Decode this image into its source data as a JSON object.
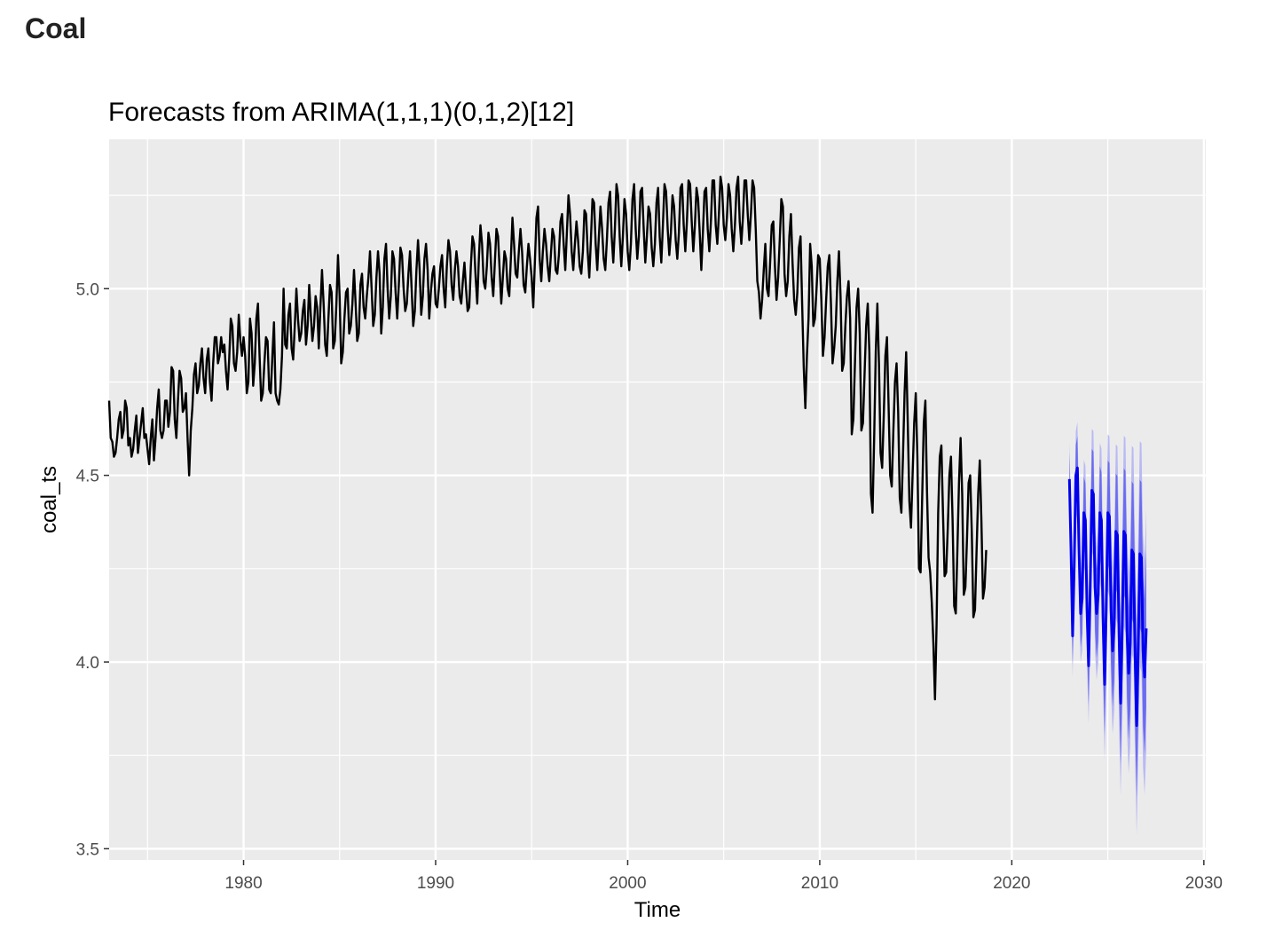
{
  "page": {
    "heading": "Coal"
  },
  "chart_data": {
    "type": "line",
    "title": "Forecasts from ARIMA(1,1,1)(0,1,2)[12]",
    "xlabel": "Time",
    "ylabel": "coal_ts",
    "xlim": [
      1973.0,
      2030.1
    ],
    "ylim": [
      3.47,
      5.4
    ],
    "x_ticks": [
      1980,
      1990,
      2000,
      2010,
      2020,
      2030
    ],
    "y_ticks": [
      3.5,
      4.0,
      4.5,
      5.0
    ],
    "x_tick_labels": [
      "1980",
      "1990",
      "2000",
      "2010",
      "2020",
      "2030"
    ],
    "y_tick_labels": [
      "3.5",
      "4.0",
      "4.5",
      "5.0"
    ],
    "grid": true,
    "legend": "none",
    "colors": {
      "panel": "#ebebeb",
      "grid": "#ffffff",
      "history": "#000000",
      "forecast": "#0000ee",
      "band80": "#6b6bf0",
      "band95": "#b9b9f5",
      "text": "#4d4d4d",
      "title": "#000000"
    },
    "series": [
      {
        "role": "history",
        "frequency": 12,
        "start": 1973.0,
        "values": [
          4.7,
          4.6,
          4.59,
          4.55,
          4.56,
          4.6,
          4.65,
          4.67,
          4.6,
          4.62,
          4.7,
          4.68,
          4.58,
          4.6,
          4.55,
          4.57,
          4.62,
          4.66,
          4.56,
          4.6,
          4.64,
          4.68,
          4.6,
          4.61,
          4.57,
          4.53,
          4.6,
          4.65,
          4.54,
          4.6,
          4.68,
          4.73,
          4.62,
          4.6,
          4.62,
          4.7,
          4.7,
          4.63,
          4.67,
          4.79,
          4.78,
          4.65,
          4.6,
          4.7,
          4.78,
          4.76,
          4.67,
          4.68,
          4.72,
          4.6,
          4.5,
          4.62,
          4.68,
          4.77,
          4.8,
          4.72,
          4.74,
          4.8,
          4.84,
          4.76,
          4.72,
          4.81,
          4.84,
          4.75,
          4.7,
          4.8,
          4.87,
          4.87,
          4.8,
          4.82,
          4.87,
          4.83,
          4.85,
          4.78,
          4.73,
          4.81,
          4.92,
          4.9,
          4.8,
          4.78,
          4.83,
          4.93,
          4.86,
          4.82,
          4.87,
          4.82,
          4.72,
          4.75,
          4.92,
          4.88,
          4.74,
          4.8,
          4.92,
          4.96,
          4.82,
          4.7,
          4.72,
          4.8,
          4.87,
          4.86,
          4.73,
          4.72,
          4.82,
          4.91,
          4.72,
          4.7,
          4.69,
          4.73,
          4.82,
          5.0,
          4.85,
          4.84,
          4.93,
          4.96,
          4.84,
          4.81,
          4.9,
          5.0,
          4.92,
          4.86,
          4.88,
          4.94,
          4.97,
          4.85,
          4.9,
          5.01,
          4.93,
          4.86,
          4.9,
          4.98,
          4.95,
          4.84,
          4.95,
          5.05,
          4.96,
          4.85,
          4.82,
          4.92,
          5.01,
          4.99,
          4.84,
          4.86,
          4.96,
          5.09,
          4.98,
          4.8,
          4.83,
          4.92,
          4.99,
          5.0,
          4.88,
          4.9,
          4.96,
          5.05,
          4.96,
          4.86,
          4.88,
          5.01,
          5.04,
          4.95,
          4.92,
          4.98,
          5.03,
          5.1,
          5.0,
          4.9,
          4.93,
          5.03,
          5.1,
          5.04,
          4.88,
          4.95,
          5.08,
          5.12,
          5.0,
          4.92,
          4.98,
          5.1,
          5.08,
          4.99,
          4.92,
          5.01,
          5.11,
          5.09,
          5.0,
          4.94,
          4.96,
          5.04,
          5.1,
          5.0,
          4.9,
          4.94,
          5.05,
          5.13,
          5.05,
          4.93,
          4.98,
          5.08,
          5.12,
          5.05,
          4.92,
          4.99,
          5.04,
          5.06,
          4.96,
          4.95,
          5.0,
          5.06,
          5.09,
          5.0,
          4.95,
          5.06,
          5.13,
          5.1,
          5.01,
          4.97,
          5.05,
          5.1,
          5.06,
          4.98,
          4.96,
          5.02,
          5.07,
          5.0,
          4.94,
          4.95,
          5.06,
          5.14,
          5.12,
          5.03,
          4.96,
          5.08,
          5.17,
          5.12,
          5.02,
          5.0,
          5.06,
          5.15,
          5.12,
          5.03,
          4.98,
          5.07,
          5.16,
          5.14,
          5.05,
          4.96,
          5.03,
          5.1,
          5.08,
          5.0,
          4.98,
          5.08,
          5.19,
          5.12,
          5.04,
          5.03,
          5.1,
          5.16,
          5.1,
          5.01,
          4.99,
          5.06,
          5.12,
          5.08,
          5.03,
          4.95,
          5.07,
          5.19,
          5.22,
          5.08,
          5.02,
          5.1,
          5.16,
          5.12,
          5.06,
          5.02,
          5.09,
          5.16,
          5.14,
          5.05,
          5.04,
          5.09,
          5.18,
          5.2,
          5.12,
          5.05,
          5.15,
          5.25,
          5.2,
          5.1,
          5.05,
          5.12,
          5.18,
          5.13,
          5.06,
          5.04,
          5.1,
          5.21,
          5.2,
          5.1,
          5.03,
          5.13,
          5.24,
          5.23,
          5.12,
          5.05,
          5.14,
          5.22,
          5.16,
          5.08,
          5.05,
          5.13,
          5.23,
          5.26,
          5.14,
          5.07,
          5.16,
          5.28,
          5.25,
          5.14,
          5.06,
          5.14,
          5.24,
          5.2,
          5.1,
          5.05,
          5.12,
          5.24,
          5.28,
          5.16,
          5.08,
          5.14,
          5.26,
          5.27,
          5.16,
          5.07,
          5.14,
          5.22,
          5.2,
          5.11,
          5.06,
          5.12,
          5.23,
          5.27,
          5.14,
          5.07,
          5.17,
          5.28,
          5.26,
          5.16,
          5.09,
          5.15,
          5.25,
          5.22,
          5.13,
          5.08,
          5.15,
          5.27,
          5.28,
          5.17,
          5.1,
          5.18,
          5.29,
          5.28,
          5.18,
          5.1,
          5.17,
          5.27,
          5.24,
          5.15,
          5.05,
          5.15,
          5.26,
          5.27,
          5.16,
          5.1,
          5.18,
          5.29,
          5.29,
          5.17,
          5.12,
          5.2,
          5.3,
          5.27,
          5.17,
          5.13,
          5.19,
          5.28,
          5.25,
          5.16,
          5.1,
          5.17,
          5.27,
          5.3,
          5.18,
          5.12,
          5.19,
          5.29,
          5.29,
          5.2,
          5.13,
          5.2,
          5.29,
          5.27,
          5.16,
          5.02,
          4.99,
          4.92,
          4.97,
          5.05,
          5.12,
          5.0,
          4.98,
          5.07,
          5.17,
          5.18,
          5.06,
          4.97,
          5.03,
          5.13,
          5.24,
          5.22,
          5.04,
          4.98,
          5.02,
          5.14,
          5.2,
          5.07,
          4.97,
          4.93,
          4.99,
          5.11,
          5.14,
          4.96,
          4.79,
          4.68,
          4.82,
          4.92,
          5.12,
          5.06,
          4.9,
          4.92,
          5.0,
          5.09,
          5.08,
          4.97,
          4.82,
          4.87,
          4.97,
          5.06,
          5.09,
          4.96,
          4.8,
          4.84,
          4.9,
          5.02,
          5.1,
          4.98,
          4.78,
          4.8,
          4.9,
          4.98,
          5.02,
          4.92,
          4.61,
          4.65,
          4.8,
          4.95,
          5.0,
          4.88,
          4.62,
          4.64,
          4.77,
          4.9,
          4.96,
          4.83,
          4.45,
          4.4,
          4.6,
          4.83,
          4.96,
          4.8,
          4.56,
          4.52,
          4.66,
          4.82,
          4.87,
          4.69,
          4.5,
          4.47,
          4.62,
          4.75,
          4.8,
          4.67,
          4.44,
          4.4,
          4.55,
          4.72,
          4.83,
          4.64,
          4.43,
          4.36,
          4.5,
          4.64,
          4.72,
          4.55,
          4.25,
          4.24,
          4.44,
          4.64,
          4.7,
          4.46,
          4.28,
          4.24,
          4.16,
          4.05,
          3.9,
          4.1,
          4.4,
          4.55,
          4.58,
          4.4,
          4.23,
          4.24,
          4.36,
          4.5,
          4.55,
          4.38,
          4.15,
          4.13,
          4.3,
          4.48,
          4.6,
          4.45,
          4.18,
          4.2,
          4.33,
          4.48,
          4.5,
          4.35,
          4.12,
          4.14,
          4.3,
          4.45,
          4.54,
          4.38,
          4.17,
          4.2,
          4.3
        ]
      },
      {
        "role": "forecast",
        "frequency": 12,
        "start": 2023.0,
        "values": [
          4.49,
          4.3,
          4.07,
          4.26,
          4.5,
          4.52,
          4.3,
          4.13,
          4.17,
          4.4,
          4.38,
          4.14,
          3.99,
          4.2,
          4.46,
          4.45,
          4.2,
          4.13,
          4.18,
          4.4,
          4.38,
          4.12,
          3.94,
          4.14,
          4.4,
          4.39,
          4.14,
          4.03,
          4.1,
          4.35,
          4.34,
          4.08,
          3.89,
          4.09,
          4.35,
          4.34,
          4.08,
          3.97,
          4.05,
          4.3,
          4.29,
          4.03,
          3.83,
          4.04,
          4.29,
          4.28,
          4.03,
          3.96,
          4.09
        ]
      }
    ],
    "interval_halfwidth": {
      "level_80": {
        "start": 0.07,
        "end": 0.21
      },
      "level_95": {
        "start": 0.1,
        "end": 0.32
      }
    }
  }
}
